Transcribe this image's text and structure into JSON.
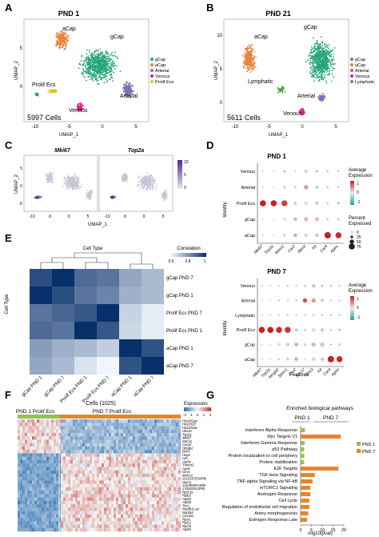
{
  "panels": {
    "A": {
      "letter": "A",
      "title": "PND 1",
      "cells": "5997 Cells",
      "xlabel": "UMAP_1",
      "ylabel": "UMAP_2",
      "xticks": [
        "-10",
        "-5",
        "0",
        "5"
      ],
      "yticks": [
        "0",
        "5"
      ],
      "labels": {
        "acap": "aCap",
        "gcap": "gCap",
        "arterial": "Arterial",
        "venous": "Venous",
        "prolif": "Prolif Ecs"
      },
      "legend": [
        "gCap",
        "aCap",
        "Arterial",
        "Venous",
        "Prolif Ecs"
      ]
    },
    "B": {
      "letter": "B",
      "title": "PND 21",
      "cells": "5611 Cells",
      "xlabel": "UMAP_1",
      "ylabel": "UMAP_2",
      "xticks": [
        "-10",
        "-5",
        "0",
        "5"
      ],
      "yticks": [
        "0",
        "5",
        "10"
      ],
      "labels": {
        "acap": "aCap",
        "gcap": "gCap",
        "lymphatic": "Lymphatic",
        "arterial": "Arterial",
        "venous": "Venous"
      },
      "legend": [
        "gCap",
        "aCap",
        "Arterial",
        "Venous",
        "Lymphatic"
      ]
    },
    "C": {
      "letter": "C",
      "genes": [
        "Mki67",
        "Top2a"
      ],
      "xlabel": "UMAP_1",
      "ylabel": "UMAP_2",
      "xticks": [
        "-10",
        "-5",
        "0",
        "5"
      ],
      "yticks": [
        "-5",
        "0",
        "5"
      ],
      "colorbar": [
        "10",
        "5",
        "0"
      ]
    },
    "D": {
      "letter": "D",
      "title1": "PND 1",
      "title2": "PND 7",
      "rows1": [
        "Venous",
        "Arterial",
        "Prolif Ecs",
        "gCap",
        "aCap"
      ],
      "rows2": [
        "Venous",
        "Arterial",
        "Lymphatic",
        "Prolif Ecs",
        "gCap",
        "aCap"
      ],
      "genes1": [
        "Mki67",
        "Top2a",
        "Stmn1",
        "Car2",
        "Ifitm3",
        "Kit",
        "Car4",
        "Aplnr"
      ],
      "genes2": [
        "Mki67",
        "Top2a",
        "Hmgb2",
        "Stmn1",
        "Car2",
        "Sox17",
        "Ifitm3",
        "Kit",
        "Car4",
        "Aplnr"
      ],
      "ylabel": "Identity",
      "xlabel": "Features",
      "avg_title": "Average Expression",
      "avg_ticks": [
        "1",
        "0",
        "-1"
      ],
      "pct_title": "Percent Expressed",
      "pct_ticks": [
        "0",
        "25",
        "50",
        "75"
      ]
    },
    "E": {
      "letter": "E",
      "title": "Cell Type",
      "ylabel": "Cell Type",
      "scale_title": "Correlation",
      "scale_ticks": [
        "0.6",
        "0.8",
        "1"
      ],
      "rows": [
        "gCap PND 7",
        "gCap PND 1",
        "Prolif Ecs PND 7",
        "Prolif Ecs PND 1",
        "aCap PND 1",
        "aCap PND 7"
      ],
      "cols": [
        "gCap PND 1",
        "gCap PND 7",
        "Prolif Ecs PND 1",
        "Prolif Ecs PND 7",
        "aCap PND 1",
        "aCap PND 7"
      ]
    },
    "F": {
      "letter": "F",
      "title": "Cells (1025)",
      "group1": "PND 1 Prolif Ecs",
      "group2": "PND 7 Prolif Ecs",
      "scale_title": "Expression",
      "scale_ticks": [
        "-2",
        "-1",
        "0",
        "1",
        "2"
      ],
      "genes_top": [
        "Hist1h2ap",
        "Hist1h1b",
        "Hist1h2ae",
        "Ube2c",
        "Top2a",
        "Mki67",
        "Stmn1",
        "Cenpf",
        "Hmgb2",
        "Birc5"
      ],
      "genes_bottom": [
        "Hopx",
        "Aes",
        "Atp5o",
        "Tmem2",
        "Apoe",
        "Gm4",
        "Mmrn1",
        "2010107E04Rik",
        "Uqcrq",
        "1110008P13Rik",
        "1700020I14Rik",
        "Rpl13a",
        "Rplp2",
        "Atp5e",
        "Atp5b",
        "Tcn1",
        "Ndufb11-ps",
        "Ndufa4",
        "Cox6a1",
        "Rps6",
        "Rpl21",
        "Rpl35",
        "Atp5h"
      ]
    },
    "G": {
      "letter": "G",
      "title": "Enriched biological pathways",
      "pnd1": "PND 1",
      "pnd7": "PND 7",
      "xlabel": "-log10(pval)",
      "xticks": [
        "0",
        "5",
        "10",
        "15",
        "20"
      ],
      "legend": [
        "PND 1",
        "PND 7"
      ]
    }
  },
  "chart_data": [
    {
      "type": "heatmap",
      "panel": "E",
      "title": "Cell Type",
      "rows": [
        "gCap PND 7",
        "gCap PND 1",
        "Prolif Ecs PND 7",
        "Prolif Ecs PND 1",
        "aCap PND 1",
        "aCap PND 7"
      ],
      "cols": [
        "gCap PND 1",
        "gCap PND 7",
        "Prolif Ecs PND 1",
        "Prolif Ecs PND 7",
        "aCap PND 1",
        "aCap PND 7"
      ],
      "values": [
        [
          0.94,
          1.0,
          0.88,
          0.86,
          0.76,
          0.72
        ],
        [
          1.0,
          0.94,
          0.86,
          0.83,
          0.74,
          0.72
        ],
        [
          0.86,
          0.89,
          0.92,
          1.0,
          0.67,
          0.62
        ],
        [
          0.88,
          0.86,
          1.0,
          0.92,
          0.66,
          0.62
        ],
        [
          0.78,
          0.74,
          0.72,
          0.68,
          1.0,
          0.93
        ],
        [
          0.76,
          0.72,
          0.64,
          0.6,
          0.93,
          1.0
        ]
      ],
      "range": [
        0.6,
        1.0
      ]
    },
    {
      "type": "bar",
      "panel": "G",
      "title": "Enriched biological pathways",
      "categories": [
        "Interferon Alpha Response",
        "Myc Targets V1",
        "Interferon Gamma Response",
        "p53 Pathway",
        "Protein localization to cell periphery",
        "Protein stabilization",
        "E2F Targets",
        "TGF-beta Signaling",
        "TNF-alpha Signaling via NF-kB",
        "mTORC1 Signaling",
        "Androgen Response",
        "Cell cycle",
        "Regulation of endothelial cell migration",
        "Artery morphogenesis",
        "Estrogen Response Late"
      ],
      "series": [
        {
          "name": "PND 1",
          "values": [
            2.0,
            0,
            1.8,
            1.6,
            1.7,
            1.6,
            0,
            0,
            0,
            0,
            0,
            0,
            0,
            0,
            0
          ]
        },
        {
          "name": "PND 7",
          "values": [
            0,
            18.5,
            0,
            0,
            0,
            0,
            17.5,
            6.5,
            5.5,
            4.5,
            4.5,
            4.0,
            4.0,
            3.5,
            3.0
          ]
        }
      ],
      "xlabel": "-log10(pval)",
      "xlim": [
        0,
        20
      ]
    },
    {
      "type": "scatter",
      "panel": "D",
      "title": "PND 1",
      "rows": [
        "Venous",
        "Arterial",
        "Prolif Ecs",
        "gCap",
        "aCap"
      ],
      "genes": [
        "Mki67",
        "Top2a",
        "Stmn1",
        "Car2",
        "Ifitm3",
        "Kit",
        "Car4",
        "Aplnr"
      ],
      "avg_expression": [
        [
          -0.5,
          -0.5,
          -0.4,
          -0.3,
          0.2,
          -0.4,
          -0.6,
          -0.5
        ],
        [
          -0.5,
          -0.5,
          -0.2,
          -0.2,
          0.6,
          -0.3,
          -0.6,
          -0.5
        ],
        [
          1.6,
          1.6,
          1.3,
          -0.3,
          0.1,
          -0.2,
          -0.6,
          -0.4
        ],
        [
          -0.4,
          -0.4,
          0.1,
          0.4,
          0.4,
          0.3,
          -0.6,
          -0.3
        ],
        [
          -0.5,
          -0.5,
          -0.3,
          0.5,
          0.2,
          0.3,
          1.6,
          1.5
        ]
      ],
      "pct_expressed": [
        [
          5,
          5,
          20,
          10,
          40,
          20,
          10,
          10
        ],
        [
          5,
          5,
          25,
          20,
          50,
          30,
          10,
          10
        ],
        [
          75,
          75,
          75,
          30,
          40,
          40,
          10,
          20
        ],
        [
          5,
          5,
          30,
          40,
          50,
          50,
          10,
          20
        ],
        [
          5,
          5,
          20,
          40,
          40,
          40,
          80,
          75
        ]
      ]
    },
    {
      "type": "scatter",
      "panel": "D",
      "title": "PND 7",
      "rows": [
        "Venous",
        "Arterial",
        "Lymphatic",
        "Prolif Ecs",
        "gCap",
        "aCap"
      ],
      "genes": [
        "Mki67",
        "Top2a",
        "Hmgb2",
        "Stmn1",
        "Car2",
        "Sox17",
        "Ifitm3",
        "Kit",
        "Car4",
        "Aplnr"
      ],
      "avg_expression": [
        [
          -0.5,
          -0.5,
          -0.3,
          -0.2,
          -0.3,
          0.2,
          0.3,
          -0.4,
          -0.6,
          -0.5
        ],
        [
          -0.5,
          -0.5,
          -0.3,
          -0.1,
          -0.2,
          1.2,
          0.6,
          -0.3,
          -0.6,
          -0.5
        ],
        [
          -0.5,
          -0.5,
          -0.3,
          -0.2,
          -0.4,
          -0.2,
          0.1,
          -0.4,
          -0.6,
          -0.5
        ],
        [
          1.6,
          1.6,
          1.5,
          1.4,
          -0.3,
          -0.2,
          0.1,
          -0.2,
          -0.6,
          -0.4
        ],
        [
          -0.4,
          -0.4,
          0.1,
          0.2,
          0.5,
          0.2,
          0.4,
          0.3,
          -0.6,
          -0.3
        ],
        [
          -0.5,
          -0.5,
          -0.2,
          -0.2,
          0.5,
          -0.1,
          0.2,
          0.3,
          1.6,
          1.5
        ]
      ],
      "pct_expressed": [
        [
          5,
          5,
          10,
          20,
          10,
          20,
          40,
          20,
          10,
          10
        ],
        [
          5,
          5,
          15,
          25,
          20,
          50,
          50,
          30,
          10,
          10
        ],
        [
          5,
          5,
          10,
          20,
          10,
          15,
          30,
          15,
          10,
          10
        ],
        [
          75,
          75,
          75,
          75,
          30,
          20,
          40,
          40,
          10,
          20
        ],
        [
          5,
          5,
          30,
          40,
          40,
          30,
          50,
          50,
          10,
          20
        ],
        [
          5,
          5,
          20,
          30,
          40,
          20,
          40,
          40,
          80,
          75
        ]
      ]
    }
  ],
  "colors": {
    "gcap": "#27a57b",
    "acap": "#e7823a",
    "arterial": "#7b6fb4",
    "venous": "#e11f8a",
    "prolif": "#e6c522",
    "lymphatic": "#4aa33c",
    "g_pnd1": "#8fc44e",
    "g_pnd7": "#e3872a"
  }
}
